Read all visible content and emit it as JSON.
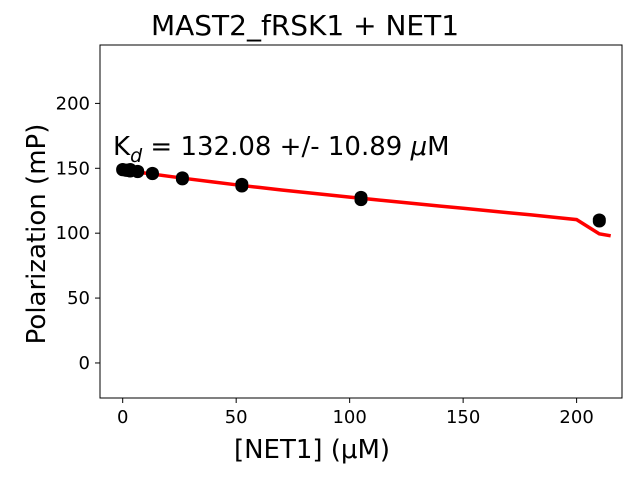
{
  "chart_data": {
    "type": "scatter",
    "title": "MAST2_fRSK1 + NET1",
    "xlabel": "[NET1] (μM)",
    "ylabel": "Polarization (mP)",
    "xlim": [
      -10,
      220
    ],
    "ylim": [
      -27,
      245
    ],
    "xticks": [
      0,
      50,
      100,
      150,
      200
    ],
    "yticks": [
      0,
      50,
      100,
      150,
      200
    ],
    "grid": false,
    "legend": "none",
    "annotation": {
      "prefix": "K",
      "subscript": "d",
      "text": " = 132.08 +/- 10.89 ",
      "mu": "μ",
      "unit": "M"
    },
    "series": [
      {
        "kind": "points",
        "color": "#000000",
        "points": [
          {
            "x": 0,
            "y": 148.5
          },
          {
            "x": 0,
            "y": 149.5
          },
          {
            "x": 1.6,
            "y": 148.0
          },
          {
            "x": 1.6,
            "y": 149.0
          },
          {
            "x": 3.3,
            "y": 147.5
          },
          {
            "x": 3.3,
            "y": 149.5
          },
          {
            "x": 6.6,
            "y": 147.0
          },
          {
            "x": 6.6,
            "y": 148.0
          },
          {
            "x": 13.1,
            "y": 145.5
          },
          {
            "x": 13.1,
            "y": 146.5
          },
          {
            "x": 26.3,
            "y": 141.5
          },
          {
            "x": 26.3,
            "y": 143.0
          },
          {
            "x": 52.5,
            "y": 136.0
          },
          {
            "x": 52.5,
            "y": 138.0
          },
          {
            "x": 105,
            "y": 125.5
          },
          {
            "x": 105,
            "y": 128.0
          },
          {
            "x": 210,
            "y": 109.0
          },
          {
            "x": 210,
            "y": 110.5
          }
        ]
      },
      {
        "kind": "fit",
        "color": "#ff0000",
        "x": [
          0,
          10,
          20,
          30,
          40,
          50,
          60,
          70,
          80,
          90,
          100,
          110,
          120,
          130,
          140,
          150,
          160,
          170,
          180,
          190,
          200,
          210,
          215
        ],
        "y": [
          148.8,
          146.3,
          143.9,
          141.6,
          139.4,
          137.3,
          135.3,
          133.3,
          131.4,
          129.6,
          127.8,
          126.0,
          124.3,
          122.6,
          120.9,
          119.2,
          117.5,
          115.8,
          114.1,
          112.3,
          110.5,
          99.5,
          98.0
        ]
      }
    ]
  }
}
